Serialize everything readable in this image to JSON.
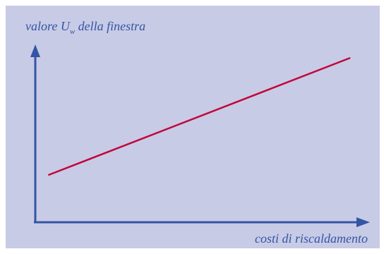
{
  "chart_data": {
    "type": "line",
    "ylabel_main": "valore U",
    "ylabel_sub": "w",
    "ylabel_rest": " della finestra",
    "xlabel": "costi di riscaldamento",
    "xlim": [
      0,
      1
    ],
    "ylim": [
      0,
      1
    ],
    "series": [
      {
        "points": [
          [
            0.04,
            0.29
          ],
          [
            0.97,
            1.0
          ]
        ]
      }
    ],
    "grid": false,
    "legend": "none"
  },
  "colors": {
    "background": "#c8cbe6",
    "axis": "#3355a5",
    "text": "#3355a5",
    "line": "#c2063a"
  }
}
